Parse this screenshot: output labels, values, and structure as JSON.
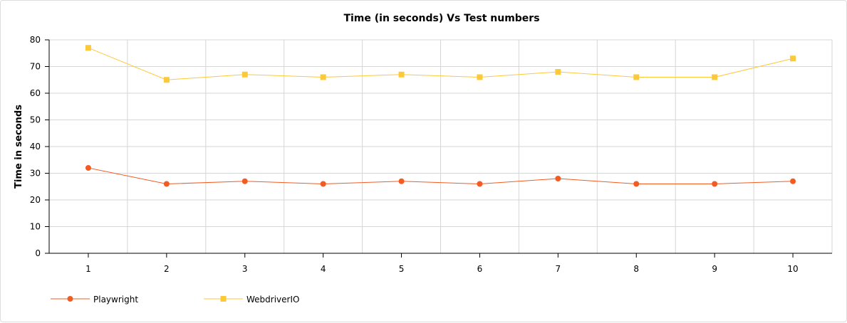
{
  "chart_data": {
    "type": "line",
    "title": "Time (in seconds) Vs Test numbers",
    "xlabel": "",
    "ylabel": "Time in seconds",
    "x": [
      "1",
      "2",
      "3",
      "4",
      "5",
      "6",
      "7",
      "8",
      "9",
      "10"
    ],
    "ylim": [
      0,
      80
    ],
    "yticks": [
      "0",
      "10",
      "20",
      "30",
      "40",
      "50",
      "60",
      "70",
      "80"
    ],
    "grid": true,
    "legend_position": "bottom-left",
    "series": [
      {
        "name": "Playwright",
        "values": [
          32,
          26,
          27,
          26,
          27,
          26,
          28,
          26,
          26,
          27
        ],
        "color": "#f25c22",
        "marker": "circle"
      },
      {
        "name": "WebdriverIO",
        "values": [
          77,
          65,
          67,
          66,
          67,
          66,
          68,
          66,
          66,
          73
        ],
        "color": "#fcc93a",
        "marker": "square"
      }
    ]
  }
}
